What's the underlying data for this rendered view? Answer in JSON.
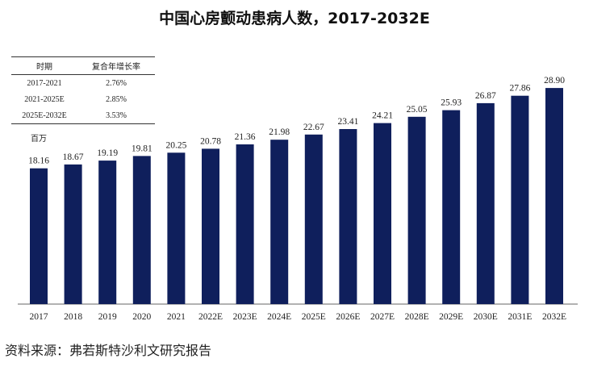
{
  "chart_data": {
    "type": "bar",
    "title": "中国心房颤动患病人数，2017-2032E",
    "unit_label": "百万",
    "categories": [
      "2017",
      "2018",
      "2019",
      "2020",
      "2021",
      "2022E",
      "2023E",
      "2024E",
      "2025E",
      "2026E",
      "2027E",
      "2028E",
      "2029E",
      "2030E",
      "2031E",
      "2032E"
    ],
    "values": [
      18.16,
      18.67,
      19.19,
      19.81,
      20.25,
      20.78,
      21.36,
      21.98,
      22.67,
      23.41,
      24.21,
      25.05,
      25.93,
      26.87,
      27.86,
      28.9
    ],
    "value_labels": [
      "18.16",
      "18.67",
      "19.19",
      "19.81",
      "20.25",
      "20.78",
      "21.36",
      "21.98",
      "22.67",
      "23.41",
      "24.21",
      "25.05",
      "25.93",
      "26.87",
      "27.86",
      "28.90"
    ],
    "bar_color": "#0f1f5c",
    "cagr_table": {
      "headers": [
        "时期",
        "复合年增长率"
      ],
      "rows": [
        [
          "2017-2021",
          "2.76%"
        ],
        [
          "2021-2025E",
          "2.85%"
        ],
        [
          "2025E-2032E",
          "3.53%"
        ]
      ]
    },
    "source": "资料来源：弗若斯特沙利文研究报告"
  }
}
